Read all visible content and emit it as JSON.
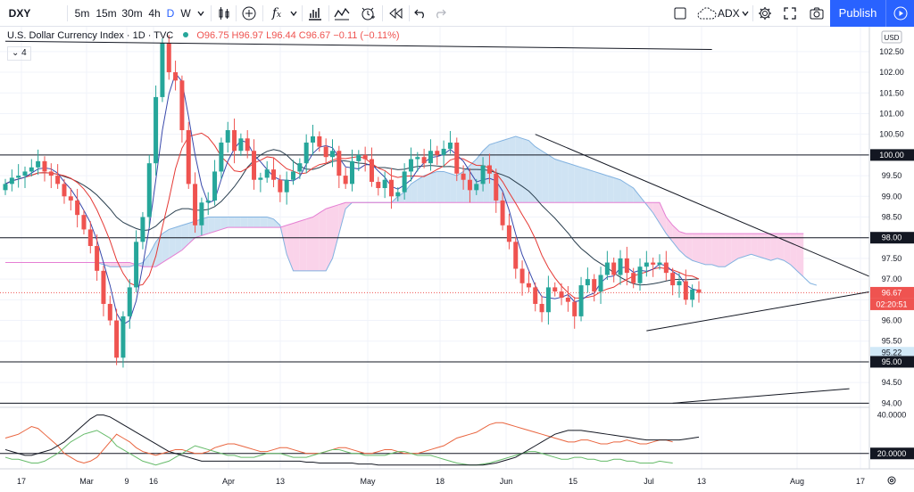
{
  "toolbar": {
    "symbol": "DXY",
    "intervals": [
      "5m",
      "15m",
      "30m",
      "4h",
      "D",
      "W"
    ],
    "active_interval": "D",
    "compare_label": "ADX",
    "publish_label": "Publish",
    "icons": [
      "dropdown-icon",
      "candles-icon",
      "add-compare-icon",
      "fx-indicators-icon",
      "templates-icon",
      "alert-icon",
      "replay-icon",
      "undo-icon",
      "redo-icon",
      "layout-icon",
      "cloud-icon",
      "settings-icon",
      "fullscreen-icon",
      "camera-icon",
      "play-icon"
    ]
  },
  "legend": {
    "title": "U.S. Dollar Currency Index · 1D · TVC",
    "open": "O96.75",
    "high": "H96.97",
    "low": "L96.44",
    "close": "C96.67",
    "change": "−0.11 (−0.11%)",
    "indicator_count": "4"
  },
  "colors": {
    "up": "#26a69a",
    "down": "#ef5350",
    "cloud_bull": "#cfe3f3",
    "cloud_bear": "#fad3ea",
    "accent": "#2962ff"
  },
  "chart_data": {
    "type": "candlestick",
    "currency": "USD",
    "ylim": [
      93.9,
      103.1
    ],
    "price_ticks": [
      "102.50",
      "102.00",
      "101.50",
      "101.00",
      "100.50",
      "100.00",
      "99.50",
      "99.00",
      "98.50",
      "98.00",
      "97.50",
      "97.00",
      "96.50",
      "96.00",
      "95.50",
      "95.00",
      "94.50",
      "94.00"
    ],
    "x_labels": [
      "17",
      "Mar",
      "9",
      "16",
      "Apr",
      "13",
      "May",
      "18",
      "Jun",
      "15",
      "Jul",
      "13",
      "Aug",
      "17"
    ],
    "horizontal_lines": [
      100.0,
      98.0,
      95.0,
      94.0
    ],
    "price_markers": [
      {
        "label": "100.00",
        "style": "dark"
      },
      {
        "label": "98.00",
        "style": "dark"
      },
      {
        "label": "96.67",
        "style": "red"
      },
      {
        "label": "02:20:51",
        "style": "red"
      },
      {
        "label": "95.22",
        "style": "blue"
      },
      {
        "label": "95.00",
        "style": "dark"
      }
    ],
    "last_price": 96.67,
    "countdown": "02:20:51",
    "closes": [
      99.3,
      99.45,
      99.5,
      99.6,
      99.7,
      99.85,
      99.6,
      99.5,
      99.3,
      99.0,
      98.9,
      98.55,
      98.2,
      97.8,
      97.2,
      96.4,
      96.0,
      95.1,
      96.1,
      96.8,
      97.9,
      98.5,
      99.8,
      101.4,
      102.7,
      102.0,
      101.8,
      100.6,
      99.3,
      98.3,
      98.85,
      98.9,
      99.6,
      100.3,
      100.6,
      100.1,
      100.4,
      100.1,
      99.4,
      99.45,
      99.65,
      99.4,
      99.1,
      99.4,
      99.6,
      99.8,
      100.3,
      100.45,
      100.2,
      99.95,
      100.1,
      99.5,
      99.3,
      99.85,
      100.0,
      99.9,
      99.35,
      99.2,
      99.4,
      99.0,
      99.1,
      99.6,
      99.9,
      99.95,
      99.8,
      100.1,
      100.0,
      100.15,
      100.3,
      99.55,
      99.4,
      99.15,
      99.3,
      99.75,
      99.55,
      98.9,
      98.3,
      97.9,
      97.25,
      96.9,
      96.8,
      96.4,
      96.2,
      96.8,
      96.7,
      96.55,
      96.45,
      96.1,
      96.85,
      97.0,
      96.7,
      97.1,
      97.4,
      97.1,
      97.5,
      97.15,
      96.9,
      97.3,
      97.4,
      97.35,
      97.4,
      97.15,
      96.85,
      96.95,
      96.5,
      96.75,
      96.67
    ],
    "cloud": {
      "senkou_a": [
        97.4,
        97.4,
        97.4,
        97.4,
        97.4,
        97.4,
        97.4,
        97.4,
        97.4,
        97.4,
        97.4,
        97.4,
        97.4,
        97.4,
        97.4,
        97.35,
        97.3,
        97.3,
        97.3,
        97.3,
        97.35,
        97.4,
        97.6,
        97.9,
        98.1,
        98.2,
        98.25,
        98.3,
        98.35,
        98.4,
        98.45,
        98.5,
        98.5,
        98.5,
        98.5,
        98.5,
        98.5,
        98.5,
        98.5,
        98.5,
        98.5,
        98.45,
        98.3,
        97.6,
        97.2,
        97.2,
        97.2,
        97.2,
        97.2,
        97.2,
        97.5,
        98.1,
        98.7,
        98.85,
        98.85,
        98.85,
        98.85,
        98.85,
        98.85,
        98.85,
        99.0,
        99.1,
        99.3,
        99.4,
        99.5,
        99.55,
        99.6,
        99.6,
        99.55,
        99.5,
        99.6,
        99.75,
        99.9,
        100.1,
        100.25,
        100.3,
        100.35,
        100.4,
        100.45,
        100.4,
        100.35,
        100.2,
        100.1,
        100.0,
        99.9,
        99.85,
        99.8,
        99.75,
        99.7,
        99.65,
        99.6,
        99.55,
        99.5,
        99.45,
        99.4,
        99.3,
        99.2,
        99.0,
        98.8,
        98.6,
        98.35,
        98.1,
        97.9,
        97.7,
        97.55,
        97.45,
        97.4,
        97.35,
        97.35,
        97.3,
        97.3,
        97.4,
        97.5,
        97.55,
        97.6,
        97.55,
        97.5,
        97.45,
        97.5,
        97.45,
        97.35,
        97.2,
        97.05,
        96.9,
        96.85
      ],
      "senkou_b": [
        97.4,
        97.4,
        97.4,
        97.4,
        97.4,
        97.4,
        97.4,
        97.4,
        97.4,
        97.4,
        97.4,
        97.4,
        97.4,
        97.4,
        97.4,
        97.4,
        97.4,
        97.4,
        97.4,
        97.4,
        97.35,
        97.3,
        97.3,
        97.3,
        97.4,
        97.5,
        97.6,
        97.7,
        97.85,
        98.0,
        98.05,
        98.1,
        98.15,
        98.2,
        98.25,
        98.25,
        98.25,
        98.25,
        98.25,
        98.25,
        98.25,
        98.25,
        98.25,
        98.3,
        98.35,
        98.4,
        98.45,
        98.5,
        98.6,
        98.7,
        98.75,
        98.8,
        98.85,
        98.85,
        98.85,
        98.85,
        98.85,
        98.85,
        98.85,
        98.85,
        98.85,
        98.85,
        98.85,
        98.85,
        98.85,
        98.85,
        98.85,
        98.85,
        98.85,
        98.85,
        98.85,
        98.85,
        98.85,
        98.85,
        98.85,
        98.85,
        98.85,
        98.85,
        98.85,
        98.85,
        98.85,
        98.85,
        98.85,
        98.85,
        98.85,
        98.85,
        98.85,
        98.85,
        98.85,
        98.85,
        98.85,
        98.85,
        98.85,
        98.85,
        98.85,
        98.85,
        98.85,
        98.85,
        98.85,
        98.85,
        98.85,
        98.5,
        98.3,
        98.15,
        98.1,
        98.1,
        98.1,
        98.1,
        98.1,
        98.1,
        98.1,
        98.1,
        98.1,
        98.1,
        98.1,
        98.1,
        98.1,
        98.1,
        98.1,
        98.1,
        98.1,
        98.1,
        98.1
      ]
    },
    "indicator": {
      "name": "ADX",
      "ticks": [
        "40.0000",
        "20.0000"
      ],
      "ylim": [
        12,
        44
      ],
      "adx": [
        22,
        21,
        20,
        19,
        19,
        20,
        21,
        22,
        24,
        26,
        29,
        32,
        35,
        38,
        40,
        40,
        39,
        37,
        35,
        33,
        31,
        29,
        27,
        25,
        23,
        21,
        20,
        19,
        18,
        17,
        16,
        16,
        16,
        16,
        16,
        16,
        16,
        16,
        16,
        16,
        16,
        16,
        16,
        16,
        16,
        16,
        15.5,
        15.5,
        15,
        15,
        15,
        15,
        15,
        15,
        14.5,
        14.5,
        14.5,
        14,
        14,
        14,
        14,
        14,
        14,
        14,
        14,
        14,
        14,
        14,
        14,
        14,
        14,
        14,
        14,
        14,
        14.5,
        15,
        16,
        17,
        18,
        20,
        22,
        24,
        26,
        28,
        30,
        31,
        32,
        32,
        32,
        31.5,
        31,
        30.5,
        30,
        29.5,
        29,
        28.5,
        28,
        27.5,
        27,
        27,
        27,
        27,
        27,
        27,
        27.5,
        28,
        28.5
      ],
      "di_plus": [
        28,
        29,
        30,
        32,
        34,
        33,
        30,
        27,
        24,
        20,
        18,
        16,
        15,
        16,
        18,
        22,
        26,
        30,
        28,
        26,
        23,
        21,
        20,
        19,
        20,
        21,
        22,
        22,
        21,
        20,
        20,
        21,
        23,
        24,
        25,
        25,
        24,
        23,
        22,
        21,
        21,
        22,
        23,
        23,
        22,
        21,
        20,
        20,
        20,
        21,
        22,
        23,
        23,
        22,
        21,
        20,
        20,
        21,
        22,
        22,
        21,
        20,
        20,
        20,
        21,
        22,
        23,
        24,
        26,
        28,
        29,
        30,
        31,
        33,
        35,
        36,
        36,
        35,
        34,
        33,
        32,
        31,
        30,
        29,
        28,
        27,
        26,
        26,
        27,
        27,
        26,
        25,
        25,
        26,
        26,
        27,
        26,
        25,
        25,
        26,
        27,
        27,
        26
      ],
      "di_minus": [
        18,
        17,
        17,
        16,
        15,
        15,
        16,
        18,
        20,
        23,
        26,
        28,
        30,
        31,
        32,
        30,
        28,
        24,
        22,
        20,
        18,
        16,
        15,
        14,
        15,
        16,
        18,
        20,
        22,
        24,
        23,
        22,
        21,
        20,
        19,
        19,
        18,
        18,
        18,
        19,
        20,
        20,
        20,
        19,
        18,
        18,
        18,
        19,
        20,
        21,
        22,
        22,
        21,
        20,
        20,
        19,
        19,
        19,
        19,
        20,
        21,
        21,
        20,
        19,
        19,
        19,
        18,
        17,
        16,
        15,
        14.5,
        14,
        14,
        14.5,
        15,
        16,
        17,
        18,
        19,
        20,
        21,
        21,
        20,
        19,
        18,
        17,
        17,
        18,
        18,
        17,
        17,
        16,
        16,
        17,
        17,
        16,
        16,
        15,
        15,
        15,
        16,
        15.5,
        15
      ]
    },
    "trendlines": [
      {
        "from": [
          0,
          102.75
        ],
        "to": [
          108,
          102.55
        ]
      },
      {
        "from": [
          81,
          100.5
        ],
        "to": [
          136,
          96.8
        ]
      },
      {
        "from": [
          98,
          95.75
        ],
        "to": [
          136,
          96.8
        ]
      },
      {
        "from": [
          102,
          94.0
        ],
        "to": [
          129,
          94.35
        ]
      }
    ]
  }
}
